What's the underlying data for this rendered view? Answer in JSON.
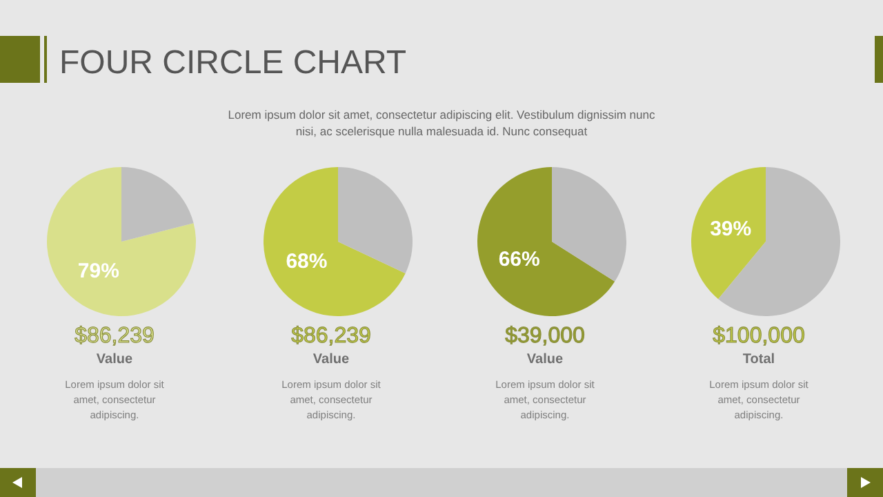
{
  "chart_data": [
    {
      "type": "pie",
      "title": "FOUR CIRCLE CHART",
      "subtitle": "Lorem ipsum dolor sit amet, consectetur adipiscing elit. Vestibulum dignissim nunc nisi, ac scelerisque nulla malesuada id. Nunc consequat",
      "categories": [
        null,
        null
      ],
      "values": [
        79,
        21
      ],
      "colors": [
        "#d9e08b",
        "#bfbfbf"
      ],
      "value_labels": [
        "79%",
        null
      ],
      "annotations": [
        "$86,239",
        "Value",
        "Lorem ipsum dolor sit amet, consectetur adipiscing."
      ]
    },
    {
      "type": "pie",
      "categories": [
        null,
        null
      ],
      "values": [
        68,
        32
      ],
      "colors": [
        "#c3cc45",
        "#bfbfbf"
      ],
      "value_labels": [
        "68%",
        null
      ],
      "annotations": [
        "$86,239",
        "Value",
        "Lorem ipsum dolor sit amet, consectetur adipiscing."
      ]
    },
    {
      "type": "pie",
      "categories": [
        null,
        null
      ],
      "values": [
        66,
        34
      ],
      "colors": [
        "#959e2c",
        "#bdbdbd"
      ],
      "value_labels": [
        "66%",
        null
      ],
      "annotations": [
        "$39,000",
        "Value",
        "Lorem ipsum dolor sit amet, consectetur adipiscing."
      ]
    },
    {
      "type": "pie",
      "categories": [
        null,
        null
      ],
      "values": [
        39,
        61
      ],
      "colors": [
        "#c3cc45",
        "#bfbfbf"
      ],
      "value_labels": [
        "39%",
        null
      ],
      "annotations": [
        "$100,000",
        "Total",
        "Lorem ipsum dolor sit amet, consectetur adipiscing."
      ]
    }
  ]
}
